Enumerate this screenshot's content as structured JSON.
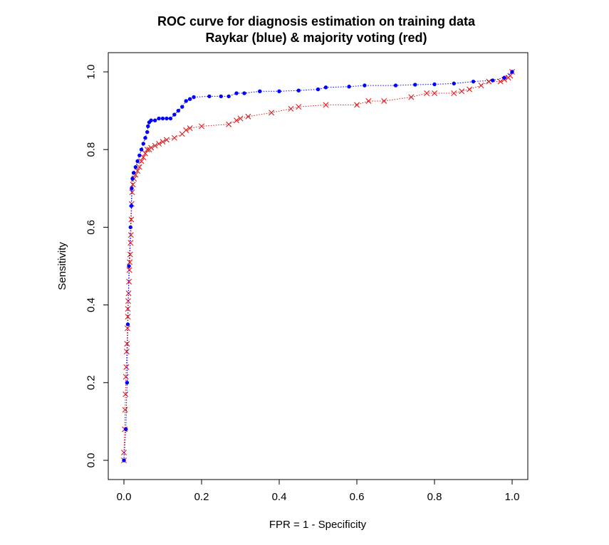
{
  "chart_data": {
    "type": "line",
    "title": "ROC curve for diagnosis estimation on training data",
    "subtitle": "Raykar (blue) & majority voting (red)",
    "xlabel": "FPR = 1 - Specificity",
    "ylabel": "Sensitivity",
    "xlim": [
      0,
      1
    ],
    "ylim": [
      0,
      1
    ],
    "x_ticks": [
      0.0,
      0.2,
      0.4,
      0.6,
      0.8,
      1.0
    ],
    "y_ticks": [
      0.0,
      0.2,
      0.4,
      0.6,
      0.8,
      1.0
    ],
    "x_tick_labels": [
      "0.0",
      "0.2",
      "0.4",
      "0.6",
      "0.8",
      "1.0"
    ],
    "y_tick_labels": [
      "0.0",
      "0.2",
      "0.4",
      "0.6",
      "0.8",
      "1.0"
    ],
    "grid": false,
    "legend": "none",
    "series": [
      {
        "color": "#0000ff",
        "marker": "dot",
        "line_style": "dotted",
        "points": [
          [
            0.0,
            0.0
          ],
          [
            0.005,
            0.08
          ],
          [
            0.008,
            0.2
          ],
          [
            0.01,
            0.35
          ],
          [
            0.013,
            0.5
          ],
          [
            0.017,
            0.6
          ],
          [
            0.019,
            0.655
          ],
          [
            0.02,
            0.7
          ],
          [
            0.022,
            0.725
          ],
          [
            0.025,
            0.74
          ],
          [
            0.03,
            0.755
          ],
          [
            0.035,
            0.77
          ],
          [
            0.04,
            0.785
          ],
          [
            0.045,
            0.8
          ],
          [
            0.05,
            0.815
          ],
          [
            0.055,
            0.83
          ],
          [
            0.06,
            0.845
          ],
          [
            0.062,
            0.86
          ],
          [
            0.065,
            0.87
          ],
          [
            0.07,
            0.875
          ],
          [
            0.08,
            0.875
          ],
          [
            0.09,
            0.88
          ],
          [
            0.1,
            0.88
          ],
          [
            0.11,
            0.88
          ],
          [
            0.12,
            0.88
          ],
          [
            0.13,
            0.89
          ],
          [
            0.14,
            0.9
          ],
          [
            0.15,
            0.91
          ],
          [
            0.16,
            0.925
          ],
          [
            0.17,
            0.93
          ],
          [
            0.18,
            0.935
          ],
          [
            0.22,
            0.937
          ],
          [
            0.25,
            0.937
          ],
          [
            0.27,
            0.937
          ],
          [
            0.29,
            0.945
          ],
          [
            0.31,
            0.945
          ],
          [
            0.35,
            0.95
          ],
          [
            0.4,
            0.95
          ],
          [
            0.45,
            0.952
          ],
          [
            0.5,
            0.955
          ],
          [
            0.52,
            0.96
          ],
          [
            0.58,
            0.962
          ],
          [
            0.62,
            0.965
          ],
          [
            0.7,
            0.965
          ],
          [
            0.75,
            0.967
          ],
          [
            0.8,
            0.968
          ],
          [
            0.85,
            0.97
          ],
          [
            0.9,
            0.975
          ],
          [
            0.95,
            0.978
          ],
          [
            0.98,
            0.985
          ],
          [
            1.0,
            1.0
          ]
        ]
      },
      {
        "color": "#e31a1c",
        "marker": "x",
        "line_style": "dotted",
        "points": [
          [
            0.0,
            0.0
          ],
          [
            0.0,
            0.02
          ],
          [
            0.002,
            0.08
          ],
          [
            0.003,
            0.13
          ],
          [
            0.004,
            0.17
          ],
          [
            0.005,
            0.215
          ],
          [
            0.006,
            0.24
          ],
          [
            0.007,
            0.28
          ],
          [
            0.008,
            0.3
          ],
          [
            0.009,
            0.34
          ],
          [
            0.01,
            0.37
          ],
          [
            0.01,
            0.39
          ],
          [
            0.011,
            0.41
          ],
          [
            0.012,
            0.43
          ],
          [
            0.013,
            0.46
          ],
          [
            0.014,
            0.49
          ],
          [
            0.015,
            0.51
          ],
          [
            0.016,
            0.53
          ],
          [
            0.017,
            0.56
          ],
          [
            0.018,
            0.58
          ],
          [
            0.019,
            0.62
          ],
          [
            0.02,
            0.66
          ],
          [
            0.021,
            0.69
          ],
          [
            0.023,
            0.71
          ],
          [
            0.026,
            0.725
          ],
          [
            0.03,
            0.735
          ],
          [
            0.035,
            0.745
          ],
          [
            0.04,
            0.755
          ],
          [
            0.045,
            0.77
          ],
          [
            0.05,
            0.78
          ],
          [
            0.055,
            0.79
          ],
          [
            0.06,
            0.8
          ],
          [
            0.065,
            0.8
          ],
          [
            0.07,
            0.805
          ],
          [
            0.08,
            0.81
          ],
          [
            0.09,
            0.815
          ],
          [
            0.1,
            0.82
          ],
          [
            0.11,
            0.825
          ],
          [
            0.13,
            0.83
          ],
          [
            0.15,
            0.84
          ],
          [
            0.16,
            0.85
          ],
          [
            0.17,
            0.855
          ],
          [
            0.2,
            0.86
          ],
          [
            0.27,
            0.865
          ],
          [
            0.29,
            0.875
          ],
          [
            0.3,
            0.88
          ],
          [
            0.32,
            0.885
          ],
          [
            0.38,
            0.895
          ],
          [
            0.43,
            0.905
          ],
          [
            0.45,
            0.91
          ],
          [
            0.52,
            0.915
          ],
          [
            0.6,
            0.915
          ],
          [
            0.63,
            0.925
          ],
          [
            0.67,
            0.925
          ],
          [
            0.74,
            0.935
          ],
          [
            0.78,
            0.945
          ],
          [
            0.8,
            0.945
          ],
          [
            0.85,
            0.945
          ],
          [
            0.87,
            0.95
          ],
          [
            0.89,
            0.955
          ],
          [
            0.92,
            0.965
          ],
          [
            0.94,
            0.975
          ],
          [
            0.97,
            0.975
          ],
          [
            0.98,
            0.98
          ],
          [
            0.99,
            0.985
          ],
          [
            0.995,
            0.99
          ],
          [
            1.0,
            1.0
          ]
        ]
      }
    ]
  }
}
